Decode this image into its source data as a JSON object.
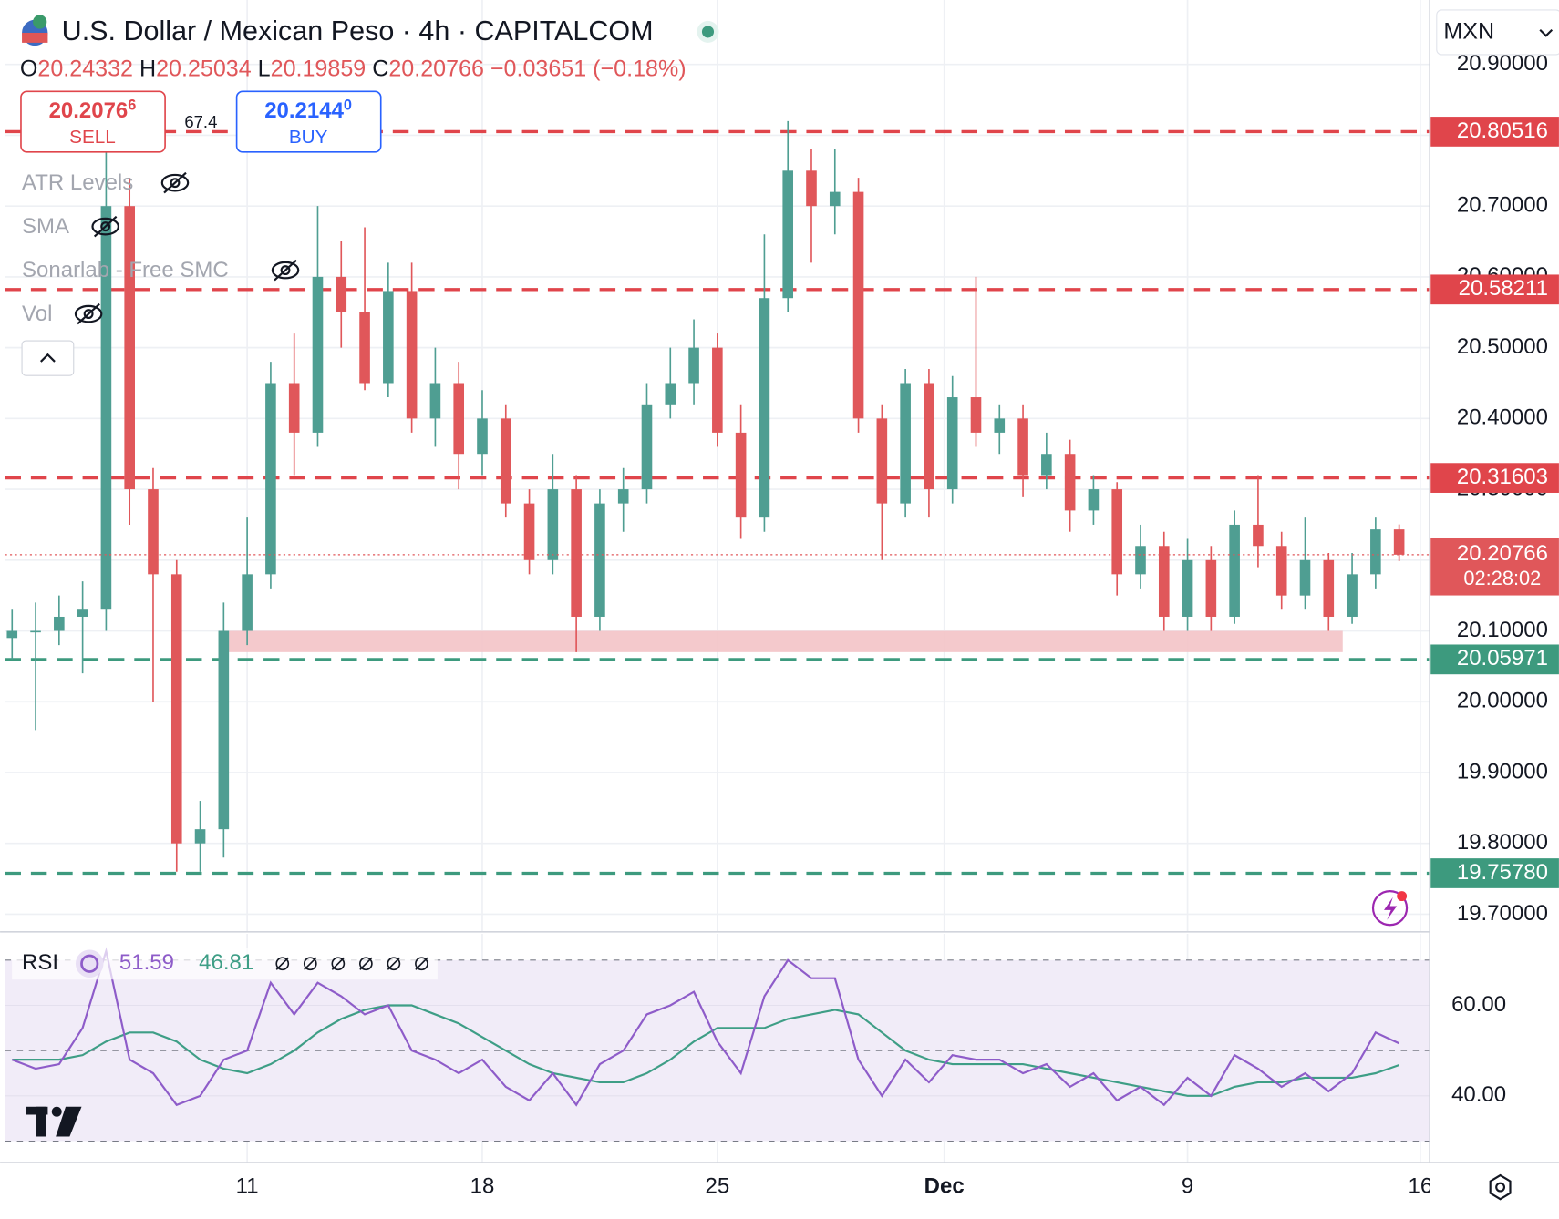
{
  "header": {
    "title": "U.S. Dollar / Mexican Peso · 4h · CAPITALCOM",
    "ohlc_letters": [
      "O",
      "H",
      "L",
      "C"
    ],
    "change": "−0.03651 (−0.18%)",
    "sell_price": "20.2076",
    "sell_pip": "6",
    "sell_label": "SELL",
    "spread": "67.4",
    "buy_price": "20.2144",
    "buy_pip": "0",
    "buy_label": "BUY",
    "indicators": [
      "ATR Levels",
      "SMA",
      "Sonarlab - Free SMC",
      "Vol"
    ],
    "currency": "MXN",
    "countdown": "02:28:02"
  },
  "chart_data": [
    {
      "type": "candlestick",
      "up_color": "#4f9e92",
      "down_color": "#e0575a",
      "x": [
        -1,
        -0.9,
        -0.8,
        -0.7,
        -0.6,
        -0.5,
        -0.4,
        -0.3,
        -0.2,
        -0.1,
        0,
        0.1,
        0.2,
        0.3,
        0.4,
        0.5,
        0.6,
        0.7,
        0.8,
        0.9,
        1,
        1.1,
        1.2,
        1.3,
        1.4,
        1.5,
        1.6,
        1.7,
        1.8,
        1.9,
        2,
        2.1,
        2.2,
        2.3,
        2.4,
        2.5,
        2.6,
        2.7,
        2.8,
        2.9,
        3,
        3.1,
        3.2,
        3.3,
        3.4,
        3.5,
        3.6,
        3.7,
        3.8,
        3.9,
        4,
        4.1,
        4.2,
        4.3,
        4.4,
        4.5,
        4.6,
        4.7,
        4.8,
        4.9
      ],
      "ohlc": [
        [
          20.09,
          20.13,
          20.06,
          20.1
        ],
        [
          20.1,
          20.14,
          19.96,
          20.1
        ],
        [
          20.1,
          20.15,
          20.08,
          20.12
        ],
        [
          20.12,
          20.17,
          20.04,
          20.13
        ],
        [
          20.13,
          20.78,
          20.1,
          20.7
        ],
        [
          20.7,
          20.74,
          20.25,
          20.3
        ],
        [
          20.3,
          20.33,
          20.0,
          20.18
        ],
        [
          20.18,
          20.2,
          19.76,
          19.8
        ],
        [
          19.8,
          19.86,
          19.76,
          19.82
        ],
        [
          19.82,
          20.14,
          19.78,
          20.1
        ],
        [
          20.1,
          20.26,
          20.08,
          20.18
        ],
        [
          20.18,
          20.48,
          20.16,
          20.45
        ],
        [
          20.45,
          20.52,
          20.32,
          20.38
        ],
        [
          20.38,
          20.7,
          20.36,
          20.6
        ],
        [
          20.6,
          20.65,
          20.5,
          20.55
        ],
        [
          20.55,
          20.67,
          20.44,
          20.45
        ],
        [
          20.45,
          20.62,
          20.43,
          20.58
        ],
        [
          20.58,
          20.62,
          20.38,
          20.4
        ],
        [
          20.4,
          20.5,
          20.36,
          20.45
        ],
        [
          20.45,
          20.48,
          20.3,
          20.35
        ],
        [
          20.35,
          20.44,
          20.32,
          20.4
        ],
        [
          20.4,
          20.42,
          20.26,
          20.28
        ],
        [
          20.28,
          20.3,
          20.18,
          20.2
        ],
        [
          20.2,
          20.35,
          20.18,
          20.3
        ],
        [
          20.3,
          20.32,
          20.07,
          20.12
        ],
        [
          20.12,
          20.3,
          20.1,
          20.28
        ],
        [
          20.28,
          20.33,
          20.24,
          20.3
        ],
        [
          20.3,
          20.45,
          20.28,
          20.42
        ],
        [
          20.42,
          20.5,
          20.4,
          20.45
        ],
        [
          20.45,
          20.54,
          20.42,
          20.5
        ],
        [
          20.5,
          20.52,
          20.36,
          20.38
        ],
        [
          20.38,
          20.42,
          20.23,
          20.26
        ],
        [
          20.26,
          20.66,
          20.24,
          20.57
        ],
        [
          20.57,
          20.82,
          20.55,
          20.75
        ],
        [
          20.75,
          20.78,
          20.62,
          20.7
        ],
        [
          20.7,
          20.78,
          20.66,
          20.72
        ],
        [
          20.72,
          20.74,
          20.38,
          20.4
        ],
        [
          20.4,
          20.42,
          20.2,
          20.28
        ],
        [
          20.28,
          20.47,
          20.26,
          20.45
        ],
        [
          20.45,
          20.47,
          20.26,
          20.3
        ],
        [
          20.3,
          20.46,
          20.28,
          20.43
        ],
        [
          20.43,
          20.6,
          20.36,
          20.38
        ],
        [
          20.38,
          20.42,
          20.35,
          20.4
        ],
        [
          20.4,
          20.42,
          20.29,
          20.32
        ],
        [
          20.32,
          20.38,
          20.3,
          20.35
        ],
        [
          20.35,
          20.37,
          20.24,
          20.27
        ],
        [
          20.27,
          20.32,
          20.25,
          20.3
        ],
        [
          20.3,
          20.31,
          20.15,
          20.18
        ],
        [
          20.18,
          20.25,
          20.16,
          20.22
        ],
        [
          20.22,
          20.24,
          20.1,
          20.12
        ],
        [
          20.12,
          20.23,
          20.1,
          20.2
        ],
        [
          20.2,
          20.22,
          20.1,
          20.12
        ],
        [
          20.12,
          20.27,
          20.11,
          20.25
        ],
        [
          20.25,
          20.32,
          20.19,
          20.22
        ],
        [
          20.22,
          20.24,
          20.13,
          20.15
        ],
        [
          20.15,
          20.26,
          20.13,
          20.2
        ],
        [
          20.2,
          20.21,
          20.1,
          20.12
        ],
        [
          20.12,
          20.21,
          20.11,
          20.18
        ],
        [
          20.18,
          20.26,
          20.16,
          20.24332
        ],
        [
          20.24332,
          20.25034,
          20.19859,
          20.20766
        ]
      ],
      "xlim": [
        -1.03,
        5.03
      ],
      "xticks": [
        {
          "value": 0,
          "label": "11"
        },
        {
          "value": 1,
          "label": "18"
        },
        {
          "value": 2,
          "label": "25"
        },
        {
          "value": 2.965,
          "label": "Dec"
        },
        {
          "value": 4,
          "label": "9"
        },
        {
          "value": 4.99,
          "label": "16"
        }
      ],
      "ylim": [
        19.675,
        20.991
      ],
      "yticks": [
        {
          "value": 19.7,
          "label": "19.70000"
        },
        {
          "value": 19.8,
          "label": "19.80000"
        },
        {
          "value": 19.9,
          "label": "19.90000"
        },
        {
          "value": 20.0,
          "label": "20.00000"
        },
        {
          "value": 20.1,
          "label": "20.10000"
        },
        {
          "value": 20.2,
          "label": "20.20000"
        },
        {
          "value": 20.3,
          "label": "20.30000"
        },
        {
          "value": 20.4,
          "label": "20.40000"
        },
        {
          "value": 20.5,
          "label": "20.50000"
        },
        {
          "value": 20.6,
          "label": "20.60000"
        },
        {
          "value": 20.7,
          "label": "20.70000"
        },
        {
          "value": 20.8,
          "label": "20.80000"
        },
        {
          "value": 20.9,
          "label": "20.90000"
        }
      ],
      "grid": true,
      "levels": [
        {
          "value": 20.80516,
          "color": "#e0454b"
        },
        {
          "value": 20.58211,
          "color": "#e0454b"
        },
        {
          "value": 20.31603,
          "color": "#e0454b"
        },
        {
          "value": 20.05971,
          "color": "#3d9a7e"
        },
        {
          "value": 19.7578,
          "label": "19.75780",
          "color": "#3d9a7e"
        }
      ],
      "zone": {
        "from": 20.07,
        "to": 20.1,
        "start": -0.08,
        "end": 4.66,
        "color": "#f3c3c6"
      }
    },
    {
      "type": "line",
      "title": "RSI",
      "ylim": [
        25.3,
        75.8
      ],
      "yticks": [
        {
          "value": 40,
          "label": "40.00"
        },
        {
          "value": 60,
          "label": "60.00"
        }
      ],
      "bands": [
        30,
        50,
        70
      ],
      "band_color": "#f1ecf8",
      "series": [
        {
          "color": "#8e5cc9",
          "values": [
            48,
            46,
            47,
            55,
            72,
            48,
            45,
            38,
            40,
            48,
            50,
            65,
            58,
            65,
            62,
            58,
            60,
            50,
            48,
            45,
            48,
            42,
            39,
            45,
            38,
            47,
            50,
            58,
            60,
            63,
            52,
            45,
            62,
            70,
            66,
            66,
            48,
            40,
            48,
            43,
            49,
            48,
            48,
            45,
            47,
            42,
            45,
            39,
            42,
            38,
            44,
            40,
            49,
            46,
            42,
            45,
            41,
            45,
            54,
            51.59
          ]
        },
        {
          "color": "#3e9e86",
          "values": [
            48,
            48,
            48,
            49,
            52,
            54,
            54,
            52,
            48,
            46,
            45,
            47,
            50,
            54,
            57,
            59,
            60,
            60,
            58,
            56,
            53,
            50,
            47,
            45,
            44,
            43,
            43,
            45,
            48,
            52,
            55,
            55,
            55,
            57,
            58,
            59,
            58,
            54,
            50,
            48,
            47,
            47,
            47,
            47,
            46,
            45,
            44,
            43,
            42,
            41,
            40,
            40,
            42,
            43,
            43,
            44,
            44,
            44,
            45,
            46.81
          ]
        }
      ]
    }
  ]
}
